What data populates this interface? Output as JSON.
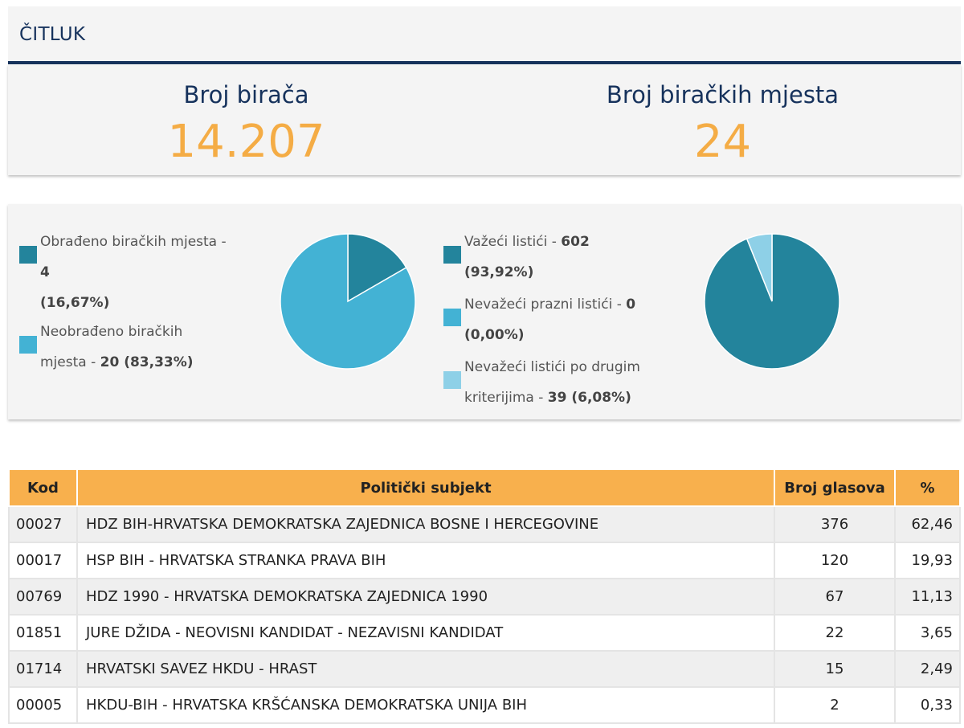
{
  "header": {
    "title": "ČITLUK"
  },
  "stats": {
    "voters_label": "Broj birača",
    "voters_value": "14.207",
    "stations_label": "Broj biračkih mjesta",
    "stations_value": "24"
  },
  "colors": {
    "dark": "#23849c",
    "mid": "#43b2d4",
    "light": "#8ed0e7",
    "accent": "#f4ac45",
    "navy": "#16325c",
    "table_header": "#f8b04d"
  },
  "legend_left": [
    {
      "label": "Obrađeno biračkih mjesta - ",
      "value": "4",
      "pct": "(16,67%)",
      "color": "#23849c"
    },
    {
      "label": "Neobrađeno biračkih mjesta - ",
      "value": "20 (83,33%)",
      "pct": "",
      "color": "#43b2d4"
    }
  ],
  "legend_right": [
    {
      "label": "Važeći listići - ",
      "value": "602",
      "pct": "(93,92%)",
      "color": "#23849c"
    },
    {
      "label": "Nevažeći prazni listići - ",
      "value": "0",
      "pct": "(0,00%)",
      "color": "#43b2d4"
    },
    {
      "label": "Nevažeći listići po drugim kriterijima - ",
      "value": "39 (6,08%)",
      "pct": "",
      "color": "#8ed0e7"
    }
  ],
  "chart_data": [
    {
      "type": "pie",
      "categories": [
        "Obrađeno biračkih mjesta",
        "Neobrađeno biračkih mjesta"
      ],
      "values": [
        4,
        20
      ],
      "colors": [
        "#23849c",
        "#43b2d4"
      ]
    },
    {
      "type": "pie",
      "categories": [
        "Važeći listići",
        "Nevažeći prazni listići",
        "Nevažeći listići po drugim kriterijima"
      ],
      "values": [
        602,
        0,
        39
      ],
      "colors": [
        "#23849c",
        "#43b2d4",
        "#8ed0e7"
      ]
    }
  ],
  "table": {
    "headers": {
      "kod": "Kod",
      "subjekt": "Politički subjekt",
      "glasovi": "Broj glasova",
      "pct": "%"
    },
    "rows": [
      {
        "kod": "00027",
        "name": "HDZ BIH-HRVATSKA DEMOKRATSKA ZAJEDNICA BOSNE I HERCEGOVINE",
        "votes": "376",
        "pct": "62,46"
      },
      {
        "kod": "00017",
        "name": "HSP BIH - HRVATSKA STRANKA PRAVA BIH",
        "votes": "120",
        "pct": "19,93"
      },
      {
        "kod": "00769",
        "name": "HDZ 1990 - HRVATSKA DEMOKRATSKA ZAJEDNICA 1990",
        "votes": "67",
        "pct": "11,13"
      },
      {
        "kod": "01851",
        "name": "JURE DŽIDA - NEOVISNI KANDIDAT - NEZAVISNI KANDIDAT",
        "votes": "22",
        "pct": "3,65"
      },
      {
        "kod": "01714",
        "name": "HRVATSKI SAVEZ HKDU - HRAST",
        "votes": "15",
        "pct": "2,49"
      },
      {
        "kod": "00005",
        "name": "HKDU-BIH - HRVATSKA KRŠĆANSKA DEMOKRATSKA UNIJA BIH",
        "votes": "2",
        "pct": "0,33"
      }
    ]
  }
}
